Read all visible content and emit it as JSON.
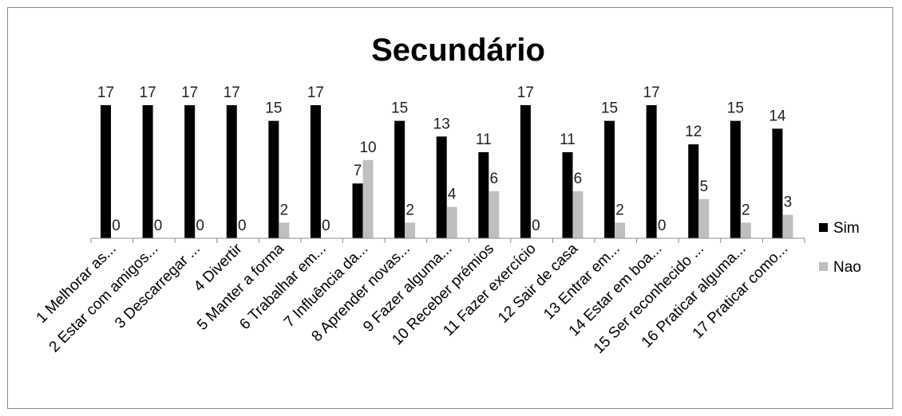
{
  "chart_data": {
    "type": "bar",
    "title": "Secundário",
    "xlabel": "",
    "ylabel": "",
    "ylim": [
      0,
      17
    ],
    "grid": false,
    "legend_position": "right",
    "categories": [
      "1 Melhorar as...",
      "2 Estar com amigos...",
      "3 Descarregar ...",
      "4 Divertir",
      "5 Manter a forma",
      "6 Trabalhar em...",
      "7 Influência da...",
      "8 Aprender novas...",
      "9 Fazer alguma...",
      "10 Receber prémios",
      "11 Fazer exercício",
      "12 Sair de casa",
      "13 Entrar em...",
      "14 Estar em boa...",
      "15 Ser reconhecido ...",
      "16 Praticar alguma...",
      "17 Praticar como..."
    ],
    "series": [
      {
        "name": "Sim",
        "color": "#000000",
        "values": [
          17,
          17,
          17,
          17,
          15,
          17,
          7,
          15,
          13,
          11,
          17,
          11,
          15,
          17,
          12,
          15,
          14
        ]
      },
      {
        "name": "Nao",
        "color": "#bfbfbf",
        "values": [
          0,
          0,
          0,
          0,
          2,
          0,
          10,
          2,
          4,
          6,
          0,
          6,
          2,
          0,
          5,
          2,
          3
        ]
      }
    ]
  }
}
